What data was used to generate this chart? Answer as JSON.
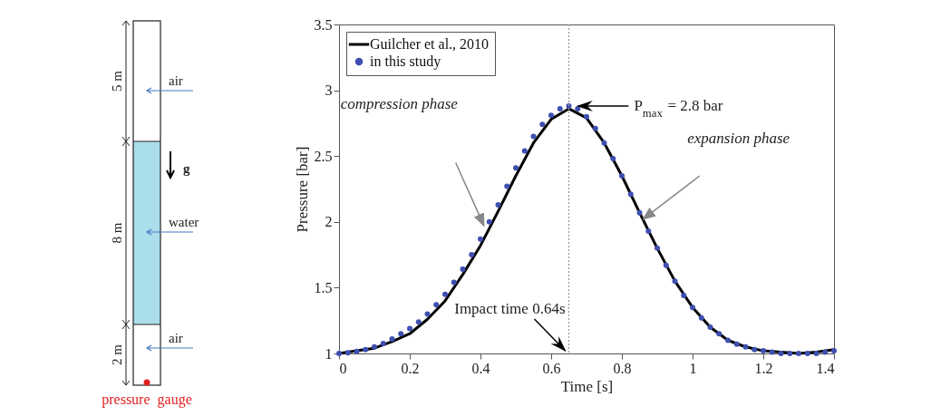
{
  "chart_data": {
    "type": "line",
    "xlabel": "Time [s]",
    "ylabel": "Pressure [bar]",
    "xlim": [
      0,
      1.4
    ],
    "xticks": [
      0,
      0.2,
      0.4,
      0.6,
      0.8,
      1,
      1.2,
      1.4
    ],
    "ylim": [
      1,
      3.5
    ],
    "yticks": [
      1,
      1.5,
      2,
      2.5,
      3,
      3.5
    ],
    "grid": false,
    "legend": "top left",
    "line_style": "solid",
    "series": [
      {
        "name": "Guilcher et al., 2010",
        "type": "line",
        "color": "#000000",
        "x": [
          0,
          0.05,
          0.1,
          0.15,
          0.2,
          0.25,
          0.3,
          0.35,
          0.4,
          0.45,
          0.5,
          0.55,
          0.6,
          0.65,
          0.7,
          0.75,
          0.8,
          0.85,
          0.9,
          0.95,
          1,
          1.05,
          1.1,
          1.15,
          1.2,
          1.25,
          1.3,
          1.35,
          1.4
        ],
        "values": [
          1,
          1.02,
          1.04,
          1.09,
          1.15,
          1.26,
          1.4,
          1.6,
          1.82,
          2.08,
          2.35,
          2.6,
          2.78,
          2.86,
          2.79,
          2.6,
          2.35,
          2.07,
          1.8,
          1.55,
          1.35,
          1.2,
          1.1,
          1.05,
          1.02,
          1.01,
          1,
          1.01,
          1.03
        ]
      },
      {
        "name": "in this study",
        "type": "scatter",
        "marker": "circle",
        "color": "#3f4fb0",
        "x": [
          0,
          0.025,
          0.05,
          0.075,
          0.1,
          0.125,
          0.15,
          0.175,
          0.2,
          0.225,
          0.25,
          0.275,
          0.3,
          0.325,
          0.35,
          0.375,
          0.4,
          0.425,
          0.45,
          0.475,
          0.5,
          0.525,
          0.55,
          0.575,
          0.6,
          0.625,
          0.65,
          0.675,
          0.7,
          0.725,
          0.75,
          0.775,
          0.8,
          0.825,
          0.85,
          0.875,
          0.9,
          0.925,
          0.95,
          0.975,
          1,
          1.025,
          1.05,
          1.075,
          1.1,
          1.125,
          1.15,
          1.175,
          1.2,
          1.225,
          1.25,
          1.275,
          1.3,
          1.325,
          1.35,
          1.375,
          1.4
        ],
        "values": [
          1,
          1.005,
          1.015,
          1.03,
          1.05,
          1.075,
          1.11,
          1.15,
          1.19,
          1.24,
          1.3,
          1.37,
          1.45,
          1.54,
          1.64,
          1.75,
          1.87,
          2,
          2.13,
          2.27,
          2.41,
          2.54,
          2.65,
          2.74,
          2.81,
          2.86,
          2.88,
          2.86,
          2.8,
          2.71,
          2.6,
          2.48,
          2.35,
          2.21,
          2.07,
          1.93,
          1.8,
          1.67,
          1.55,
          1.44,
          1.35,
          1.27,
          1.2,
          1.15,
          1.1,
          1.07,
          1.05,
          1.03,
          1.02,
          1.01,
          1,
          1,
          1,
          1,
          1,
          1.01,
          1.02
        ]
      }
    ],
    "ref_lines": [
      {
        "axis": "x",
        "value": 0.65,
        "label": "Impact time 0.64s",
        "line_style": "dotted",
        "color": "#999999"
      }
    ],
    "annotations": [
      "5 m",
      "8 m",
      "2 m",
      "air",
      "water",
      "air",
      "g",
      "pressure  gauge",
      "compression phase",
      "expansion phase",
      "P$_{max}$ = 2.8 bar"
    ]
  }
}
